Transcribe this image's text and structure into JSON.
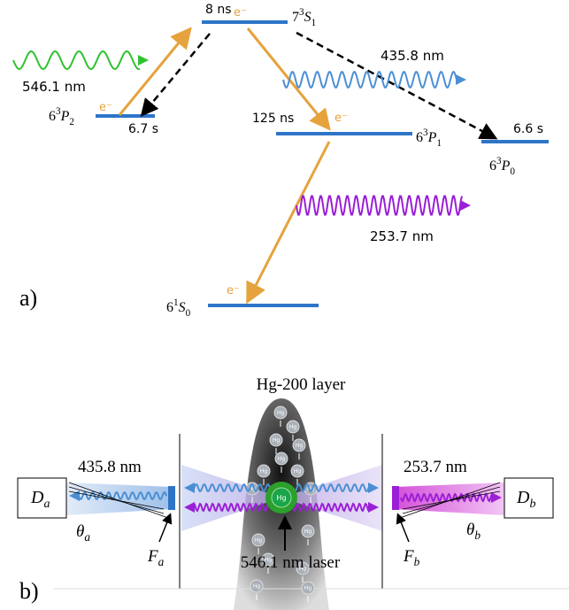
{
  "part_a": {
    "label": "a)",
    "levels": [
      {
        "pre": "7",
        "sup": "3",
        "term": "S",
        "sub": "1",
        "lifetime": "8 ns"
      },
      {
        "pre": "6",
        "sup": "3",
        "term": "P",
        "sub": "2",
        "lifetime": "6.7 s"
      },
      {
        "pre": "6",
        "sup": "3",
        "term": "P",
        "sub": "1",
        "lifetime": "125 ns"
      },
      {
        "pre": "6",
        "sup": "3",
        "term": "P",
        "sub": "0",
        "lifetime": "6.6 s"
      },
      {
        "pre": "6",
        "sup": "1",
        "term": "S",
        "sub": "0"
      }
    ],
    "electrons": [
      "e⁻",
      "e⁻",
      "e⁻",
      "e⁻"
    ],
    "wavelengths": [
      "546.1 nm",
      "435.8 nm",
      "253.7 nm"
    ]
  },
  "part_b": {
    "label": "b)",
    "title": "Hg-200 layer",
    "left_wavelength": "435.8 nm",
    "right_wavelength": "253.7 nm",
    "detectors": [
      {
        "main": "D",
        "sub": "a"
      },
      {
        "main": "D",
        "sub": "b"
      }
    ],
    "angles": [
      {
        "main": "θ",
        "sub": "a"
      },
      {
        "main": "θ",
        "sub": "b"
      }
    ],
    "filters": [
      {
        "main": "F",
        "sub": "a"
      },
      {
        "main": "F",
        "sub": "b"
      }
    ],
    "laser": "546.1 nm laser",
    "center_atom": "Hg",
    "atoms": [
      "Hg",
      "Hg",
      "Hg",
      "Hg",
      "Hg",
      "Hg",
      "Hg",
      "Hg",
      "Hg",
      "Hg",
      "Hg",
      "Hg",
      "Hg",
      "Hg",
      "Hg"
    ]
  }
}
